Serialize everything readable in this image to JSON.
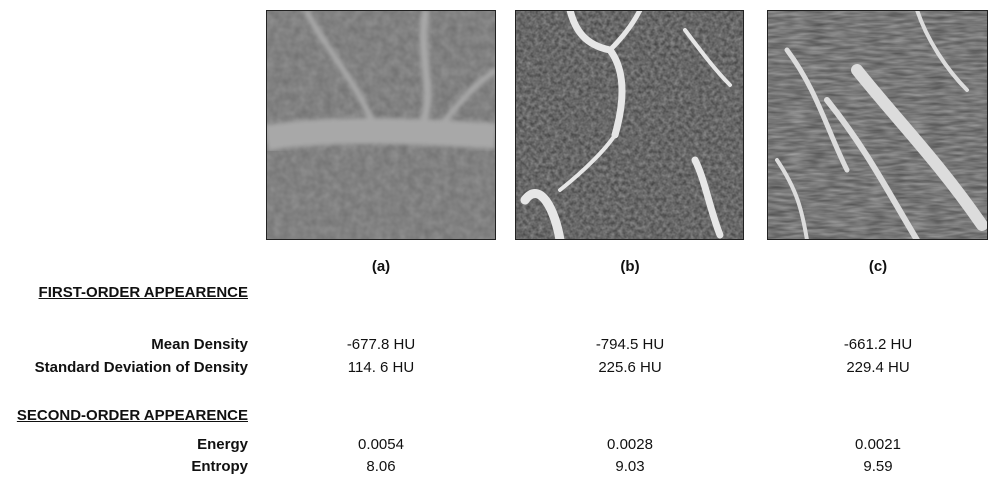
{
  "panels": [
    {
      "label": "(a)"
    },
    {
      "label": "(b)"
    },
    {
      "label": "(c)"
    }
  ],
  "sections": [
    {
      "title": "FIRST-ORDER APPEARENCE",
      "rows": [
        {
          "label": "Mean Density",
          "values": [
            "-677.8 HU",
            "-794.5 HU",
            "-661.2 HU"
          ]
        },
        {
          "label": "Standard Deviation of Density",
          "values": [
            "114. 6 HU",
            "225.6 HU",
            "229.4 HU"
          ]
        }
      ]
    },
    {
      "title": "SECOND-ORDER APPEARENCE",
      "rows": [
        {
          "label": "Energy",
          "values": [
            "0.0054",
            "0.0028",
            "0.0021"
          ]
        },
        {
          "label": "Entropy",
          "values": [
            "8.06",
            "9.03",
            "9.59"
          ]
        }
      ]
    }
  ]
}
